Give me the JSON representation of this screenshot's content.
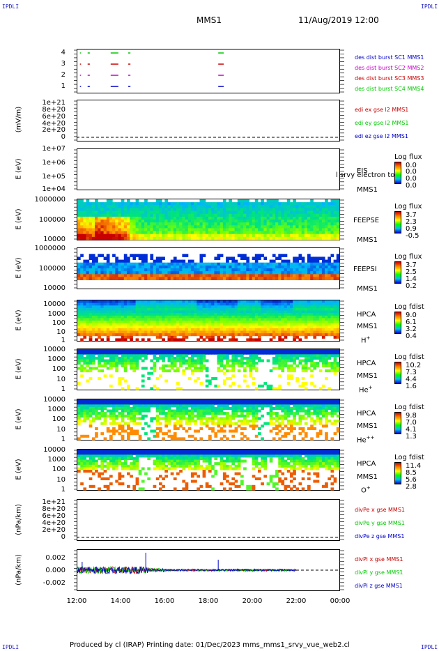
{
  "header": {
    "mission": "MMS1",
    "date": "11/Aug/2019 12:00"
  },
  "corners": {
    "top_left": "IPDLI",
    "top_right": "IPDLI",
    "bottom_left": "IPDLI",
    "bottom_right": "IPDLI"
  },
  "footer": "Produced by cl (IRAP)   Printing date: 01/Dec/2023   mms_mms1_srvy_vue_web2.cl",
  "colors": {
    "mms1": "#0000c8",
    "mms2": "#c800c8",
    "mms3": "#c80000",
    "mms4": "#00c800"
  },
  "x_axis": {
    "ticks": [
      "12:00",
      "14:00",
      "16:00",
      "18:00",
      "20:00",
      "22:00",
      "00:00"
    ]
  },
  "chart_data": [
    {
      "type": "line",
      "panel": "burst",
      "yticks": [
        "4",
        "3",
        "2",
        "1"
      ],
      "ylabel": "",
      "series": [
        {
          "name": "des dist burst SC1 MMS1",
          "color": "#0000c8",
          "level": 1
        },
        {
          "name": "des dist burst SC2 MMS2",
          "color": "#c800c8",
          "level": 2
        },
        {
          "name": "des dist burst SC3 MMS3",
          "color": "#c80000",
          "level": 3
        },
        {
          "name": "des dist burst SC4 MMS4",
          "color": "#00c800",
          "level": 4
        }
      ],
      "segments_hours": [
        [
          12.15,
          12.2
        ],
        [
          12.5,
          12.6
        ],
        [
          13.55,
          13.9
        ],
        [
          14.35,
          14.45
        ],
        [
          18.45,
          18.7
        ]
      ]
    },
    {
      "type": "line",
      "panel": "edi",
      "ylabel": "(mV/m)",
      "yticks": [
        "1e+21",
        "8e+20",
        "6e+20",
        "4e+20",
        "2e+20",
        "0"
      ],
      "series": [
        {
          "name": "edi ex gse l2 MMS1",
          "color": "#c80000"
        },
        {
          "name": "edi ey gse l2 MMS1",
          "color": "#00c800"
        },
        {
          "name": "edi ez gse l2 MMS1",
          "color": "#0000c8"
        }
      ]
    },
    {
      "type": "heatmap",
      "panel": "eis",
      "ylabel": "E (eV)",
      "yticks": [
        "1e+07",
        "1e+06",
        "1e+05",
        "1e+04"
      ],
      "instrument": [
        "EIS",
        "MMS1"
      ],
      "overlay_text": "l srvy electron to",
      "colorbar": {
        "title": "Log flux",
        "values": [
          "0.0",
          "0.0",
          "0.0",
          "0.0"
        ]
      }
    },
    {
      "type": "heatmap",
      "panel": "feeps_e",
      "ylabel": "E (eV)",
      "yticks": [
        "1000000",
        "100000",
        "10000"
      ],
      "instrument": [
        "FEEPSE",
        "MMS1"
      ],
      "colorbar": {
        "title": "Log flux",
        "values": [
          "3.7",
          "2.3",
          "0.9",
          "-0.5"
        ]
      }
    },
    {
      "type": "heatmap",
      "panel": "feeps_i",
      "ylabel": "E (eV)",
      "yticks": [
        "1000000",
        "100000",
        "10000"
      ],
      "instrument": [
        "FEEPSI",
        "MMS1"
      ],
      "colorbar": {
        "title": "Log flux",
        "values": [
          "3.7",
          "2.5",
          "1.4",
          "0.2"
        ]
      }
    },
    {
      "type": "heatmap",
      "panel": "hpca_h",
      "ylabel": "E (eV)",
      "yticks": [
        "10000",
        "1000",
        "100",
        "10",
        "1"
      ],
      "instrument": [
        "HPCA",
        "MMS1"
      ],
      "species": "H",
      "species_sup": "+",
      "colorbar": {
        "title": "Log fdist",
        "values": [
          "9.0",
          "6.1",
          "3.2",
          "0.4"
        ]
      }
    },
    {
      "type": "heatmap",
      "panel": "hpca_he",
      "ylabel": "E (eV)",
      "yticks": [
        "10000",
        "1000",
        "100",
        "10",
        "1"
      ],
      "instrument": [
        "HPCA",
        "MMS1"
      ],
      "species": "He",
      "species_sup": "+",
      "colorbar": {
        "title": "Log fdist",
        "values": [
          "10.2",
          "7.3",
          "4.4",
          "1.6"
        ]
      }
    },
    {
      "type": "heatmap",
      "panel": "hpca_hepp",
      "ylabel": "E (eV)",
      "yticks": [
        "10000",
        "1000",
        "100",
        "10",
        "1"
      ],
      "instrument": [
        "HPCA",
        "MMS1"
      ],
      "species": "He",
      "species_sup": "++",
      "colorbar": {
        "title": "Log fdist",
        "values": [
          "9.8",
          "7.0",
          "4.1",
          "1.3"
        ]
      }
    },
    {
      "type": "heatmap",
      "panel": "hpca_o",
      "ylabel": "E (eV)",
      "yticks": [
        "10000",
        "1000",
        "100",
        "10",
        "1"
      ],
      "instrument": [
        "HPCA",
        "MMS1"
      ],
      "species": "O",
      "species_sup": "+",
      "colorbar": {
        "title": "Log fdist",
        "values": [
          "11.4",
          "8.5",
          "5.6",
          "2.8"
        ]
      }
    },
    {
      "type": "line",
      "panel": "divpe",
      "ylabel": "(nPa/km)",
      "yticks": [
        "1e+21",
        "8e+20",
        "6e+20",
        "4e+20",
        "2e+20",
        "0"
      ],
      "series": [
        {
          "name": "divPe x gse MMS1",
          "color": "#c80000"
        },
        {
          "name": "divPe y gse MMS1",
          "color": "#00c800"
        },
        {
          "name": "divPe z gse MMS1",
          "color": "#0000c8"
        }
      ]
    },
    {
      "type": "line",
      "panel": "divpi",
      "ylabel": "(nPa/km)",
      "yticks": [
        "0.002",
        "0.000",
        "-0.002"
      ],
      "ylim": [
        -0.003,
        0.003
      ],
      "xlim_hours": [
        12,
        24
      ],
      "data_end_hours": 22.0,
      "series": [
        {
          "name": "divPi x gse MMS1",
          "color": "#c80000"
        },
        {
          "name": "divPi y gse MMS1",
          "color": "#00c800"
        },
        {
          "name": "divPi z gse MMS1",
          "color": "#0000c8"
        }
      ],
      "spikes": [
        {
          "hour": 12.25,
          "value": 0.0012
        },
        {
          "hour": 15.15,
          "value": 0.0025
        },
        {
          "hour": 18.45,
          "value": 0.0015
        }
      ]
    }
  ]
}
